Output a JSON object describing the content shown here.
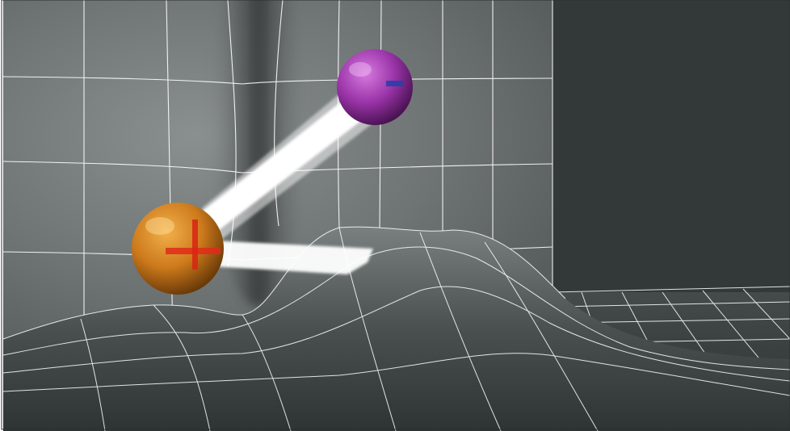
{
  "scene": {
    "objects": [
      {
        "kind": "sphere",
        "color": "#c06a14",
        "marker_color": "#e02a1a"
      },
      {
        "kind": "sphere",
        "color": "#8a2a9a",
        "marker_color": "#2a3fa8"
      }
    ],
    "colors": {
      "back_wall": "#6e7373",
      "right_wall": "#333939",
      "floor": "#3a4040",
      "grid": "#ffffff",
      "trail": "#ffffff"
    }
  }
}
